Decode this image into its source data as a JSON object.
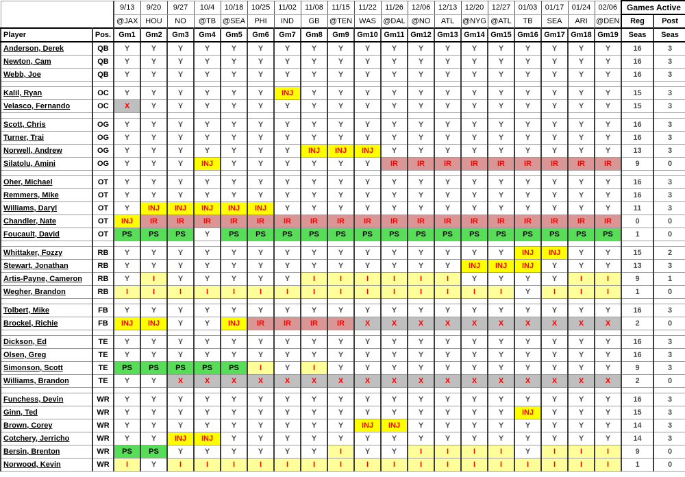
{
  "table": {
    "headers": {
      "player": "Player",
      "pos": "Pos.",
      "games_active": "Games Active",
      "reg_line1": "Reg",
      "reg_line2": "Seas",
      "post_line1": "Post",
      "post_line2": "Seas"
    },
    "games": [
      {
        "date": "9/13",
        "opponent": "@JAX",
        "label": "Gm1"
      },
      {
        "date": "9/20",
        "opponent": "HOU",
        "label": "Gm2"
      },
      {
        "date": "9/27",
        "opponent": "NO",
        "label": "Gm3"
      },
      {
        "date": "10/4",
        "opponent": "@TB",
        "label": "Gm4"
      },
      {
        "date": "10/18",
        "opponent": "@SEA",
        "label": "Gm5"
      },
      {
        "date": "10/25",
        "opponent": "PHI",
        "label": "Gm6"
      },
      {
        "date": "11/02",
        "opponent": "IND",
        "label": "Gm7"
      },
      {
        "date": "11/08",
        "opponent": "GB",
        "label": "Gm8"
      },
      {
        "date": "11/15",
        "opponent": "@TEN",
        "label": "Gm9"
      },
      {
        "date": "11/22",
        "opponent": "WAS",
        "label": "Gm10"
      },
      {
        "date": "11/26",
        "opponent": "@DAL",
        "label": "Gm11"
      },
      {
        "date": "12/06",
        "opponent": "@NO",
        "label": "Gm12"
      },
      {
        "date": "12/13",
        "opponent": "ATL",
        "label": "Gm13"
      },
      {
        "date": "12/20",
        "opponent": "@NYG",
        "label": "Gm14"
      },
      {
        "date": "12/27",
        "opponent": "@ATL",
        "label": "Gm15"
      },
      {
        "date": "01/03",
        "opponent": "TB",
        "label": "Gm16"
      },
      {
        "date": "01/17",
        "opponent": "SEA",
        "label": "Gm17"
      },
      {
        "date": "01/24",
        "opponent": "ARI",
        "label": "Gm18"
      },
      {
        "date": "02/06",
        "opponent": "@DEN",
        "label": "Gm19"
      }
    ],
    "status_colors": {
      "active_text": "#4d4d4d",
      "injured_bg": "#ffff00",
      "injured_reserve_bg": "#d99694",
      "practice_squad_bg": "#57dd57",
      "not_on_roster_bg": "#bfbfbf",
      "inactive_bg": "#ffff99",
      "status_text": "#ff0000"
    },
    "groups": [
      {
        "players": [
          {
            "name": "Anderson, Derek",
            "pos": "QB",
            "cells": [
              "Y",
              "Y",
              "Y",
              "Y",
              "Y",
              "Y",
              "Y",
              "Y",
              "Y",
              "Y",
              "Y",
              "Y",
              "Y",
              "Y",
              "Y",
              "Y",
              "Y",
              "Y",
              "Y"
            ],
            "reg": "16",
            "post": "3"
          },
          {
            "name": "Newton, Cam",
            "pos": "QB",
            "cells": [
              "Y",
              "Y",
              "Y",
              "Y",
              "Y",
              "Y",
              "Y",
              "Y",
              "Y",
              "Y",
              "Y",
              "Y",
              "Y",
              "Y",
              "Y",
              "Y",
              "Y",
              "Y",
              "Y"
            ],
            "reg": "16",
            "post": "3"
          },
          {
            "name": "Webb, Joe",
            "pos": "QB",
            "cells": [
              "Y",
              "Y",
              "Y",
              "Y",
              "Y",
              "Y",
              "Y",
              "Y",
              "Y",
              "Y",
              "Y",
              "Y",
              "Y",
              "Y",
              "Y",
              "Y",
              "Y",
              "Y",
              "Y"
            ],
            "reg": "16",
            "post": "3"
          }
        ]
      },
      {
        "players": [
          {
            "name": "Kalil, Ryan",
            "pos": "OC",
            "cells": [
              "Y",
              "Y",
              "Y",
              "Y",
              "Y",
              "Y",
              "INJ",
              "Y",
              "Y",
              "Y",
              "Y",
              "Y",
              "Y",
              "Y",
              "Y",
              "Y",
              "Y",
              "Y",
              "Y"
            ],
            "reg": "15",
            "post": "3"
          },
          {
            "name": "Velasco, Fernando",
            "pos": "OC",
            "cells": [
              "X",
              "Y",
              "Y",
              "Y",
              "Y",
              "Y",
              "Y",
              "Y",
              "Y",
              "Y",
              "Y",
              "Y",
              "Y",
              "Y",
              "Y",
              "Y",
              "Y",
              "Y",
              "Y"
            ],
            "reg": "15",
            "post": "3"
          }
        ]
      },
      {
        "players": [
          {
            "name": "Scott, Chris",
            "pos": "OG",
            "cells": [
              "Y",
              "Y",
              "Y",
              "Y",
              "Y",
              "Y",
              "Y",
              "Y",
              "Y",
              "Y",
              "Y",
              "Y",
              "Y",
              "Y",
              "Y",
              "Y",
              "Y",
              "Y",
              "Y"
            ],
            "reg": "16",
            "post": "3"
          },
          {
            "name": "Turner, Trai",
            "pos": "OG",
            "cells": [
              "Y",
              "Y",
              "Y",
              "Y",
              "Y",
              "Y",
              "Y",
              "Y",
              "Y",
              "Y",
              "Y",
              "Y",
              "Y",
              "Y",
              "Y",
              "Y",
              "Y",
              "Y",
              "Y"
            ],
            "reg": "16",
            "post": "3"
          },
          {
            "name": "Norwell, Andrew",
            "pos": "OG",
            "cells": [
              "Y",
              "Y",
              "Y",
              "Y",
              "Y",
              "Y",
              "Y",
              "INJ",
              "INJ",
              "INJ",
              "Y",
              "Y",
              "Y",
              "Y",
              "Y",
              "Y",
              "Y",
              "Y",
              "Y"
            ],
            "reg": "13",
            "post": "3"
          },
          {
            "name": "Silatolu, Amini",
            "pos": "OG",
            "cells": [
              "Y",
              "Y",
              "Y",
              "INJ",
              "Y",
              "Y",
              "Y",
              "Y",
              "Y",
              "Y",
              "IR",
              "IR",
              "IR",
              "IR",
              "IR",
              "IR",
              "IR",
              "IR",
              "IR"
            ],
            "reg": "9",
            "post": "0"
          }
        ]
      },
      {
        "players": [
          {
            "name": "Oher, Michael",
            "pos": "OT",
            "cells": [
              "Y",
              "Y",
              "Y",
              "Y",
              "Y",
              "Y",
              "Y",
              "Y",
              "Y",
              "Y",
              "Y",
              "Y",
              "Y",
              "Y",
              "Y",
              "Y",
              "Y",
              "Y",
              "Y"
            ],
            "reg": "16",
            "post": "3"
          },
          {
            "name": "Remmers, Mike",
            "pos": "OT",
            "cells": [
              "Y",
              "Y",
              "Y",
              "Y",
              "Y",
              "Y",
              "Y",
              "Y",
              "Y",
              "Y",
              "Y",
              "Y",
              "Y",
              "Y",
              "Y",
              "Y",
              "Y",
              "Y",
              "Y"
            ],
            "reg": "16",
            "post": "3"
          },
          {
            "name": "Williams, Daryl",
            "pos": "OT",
            "cells": [
              "Y",
              "INJ",
              "INJ",
              "INJ",
              "INJ",
              "INJ",
              "Y",
              "Y",
              "Y",
              "Y",
              "Y",
              "Y",
              "Y",
              "Y",
              "Y",
              "Y",
              "Y",
              "Y",
              "Y"
            ],
            "reg": "11",
            "post": "3"
          },
          {
            "name": "Chandler, Nate",
            "pos": "OT",
            "cells": [
              "INJ",
              "IR",
              "IR",
              "IR",
              "IR",
              "IR",
              "IR",
              "IR",
              "IR",
              "IR",
              "IR",
              "IR",
              "IR",
              "IR",
              "IR",
              "IR",
              "IR",
              "IR",
              "IR"
            ],
            "reg": "0",
            "post": "0"
          },
          {
            "name": "Foucault, David",
            "pos": "OT",
            "cells": [
              "PS",
              "PS",
              "PS",
              "Y",
              "PS",
              "PS",
              "PS",
              "PS",
              "PS",
              "PS",
              "PS",
              "PS",
              "PS",
              "PS",
              "PS",
              "PS",
              "PS",
              "PS",
              "PS"
            ],
            "reg": "1",
            "post": "0"
          }
        ]
      },
      {
        "players": [
          {
            "name": "Whittaker, Fozzy",
            "pos": "RB",
            "cells": [
              "Y",
              "Y",
              "Y",
              "Y",
              "Y",
              "Y",
              "Y",
              "Y",
              "Y",
              "Y",
              "Y",
              "Y",
              "Y",
              "Y",
              "Y",
              "INJ",
              "INJ",
              "Y",
              "Y"
            ],
            "reg": "15",
            "post": "2"
          },
          {
            "name": "Stewart, Jonathan",
            "pos": "RB",
            "cells": [
              "Y",
              "Y",
              "Y",
              "Y",
              "Y",
              "Y",
              "Y",
              "Y",
              "Y",
              "Y",
              "Y",
              "Y",
              "Y",
              "INJ",
              "INJ",
              "INJ",
              "Y",
              "Y",
              "Y"
            ],
            "reg": "13",
            "post": "3"
          },
          {
            "name": "Artis-Payne, Cameron",
            "pos": "RB",
            "cells": [
              "Y",
              "I",
              "Y",
              "Y",
              "Y",
              "Y",
              "Y",
              "I",
              "I",
              "I",
              "I",
              "I",
              "I",
              "Y",
              "Y",
              "Y",
              "Y",
              "I",
              "I"
            ],
            "reg": "9",
            "post": "1"
          },
          {
            "name": "Wegher, Brandon",
            "pos": "RB",
            "cells": [
              "I",
              "I",
              "I",
              "I",
              "I",
              "I",
              "I",
              "I",
              "I",
              "I",
              "I",
              "I",
              "I",
              "I",
              "I",
              "Y",
              "I",
              "I",
              "I"
            ],
            "reg": "1",
            "post": "0"
          }
        ]
      },
      {
        "players": [
          {
            "name": "Tolbert, Mike",
            "pos": "FB",
            "cells": [
              "Y",
              "Y",
              "Y",
              "Y",
              "Y",
              "Y",
              "Y",
              "Y",
              "Y",
              "Y",
              "Y",
              "Y",
              "Y",
              "Y",
              "Y",
              "Y",
              "Y",
              "Y",
              "Y"
            ],
            "reg": "16",
            "post": "3"
          },
          {
            "name": "Brockel, Richie",
            "pos": "FB",
            "cells": [
              "INJ",
              "INJ",
              "Y",
              "Y",
              "INJ",
              "IR",
              "IR",
              "IR",
              "IR",
              "X",
              "X",
              "X",
              "X",
              "X",
              "X",
              "X",
              "X",
              "X",
              "X"
            ],
            "reg": "2",
            "post": "0"
          }
        ]
      },
      {
        "players": [
          {
            "name": "Dickson, Ed",
            "pos": "TE",
            "cells": [
              "Y",
              "Y",
              "Y",
              "Y",
              "Y",
              "Y",
              "Y",
              "Y",
              "Y",
              "Y",
              "Y",
              "Y",
              "Y",
              "Y",
              "Y",
              "Y",
              "Y",
              "Y",
              "Y"
            ],
            "reg": "16",
            "post": "3"
          },
          {
            "name": "Olsen, Greg",
            "pos": "TE",
            "cells": [
              "Y",
              "Y",
              "Y",
              "Y",
              "Y",
              "Y",
              "Y",
              "Y",
              "Y",
              "Y",
              "Y",
              "Y",
              "Y",
              "Y",
              "Y",
              "Y",
              "Y",
              "Y",
              "Y"
            ],
            "reg": "16",
            "post": "3"
          },
          {
            "name": "Simonson, Scott",
            "pos": "TE",
            "cells": [
              "PS",
              "PS",
              "PS",
              "PS",
              "PS",
              "I",
              "Y",
              "I",
              "Y",
              "Y",
              "Y",
              "Y",
              "Y",
              "Y",
              "Y",
              "Y",
              "Y",
              "Y",
              "Y"
            ],
            "reg": "9",
            "post": "3"
          },
          {
            "name": "Williams, Brandon",
            "pos": "TE",
            "cells": [
              "Y",
              "Y",
              "X",
              "X",
              "X",
              "X",
              "X",
              "X",
              "X",
              "X",
              "X",
              "X",
              "X",
              "X",
              "X",
              "X",
              "X",
              "X",
              "X"
            ],
            "reg": "2",
            "post": "0"
          }
        ]
      },
      {
        "players": [
          {
            "name": "Funchess, Devin",
            "pos": "WR",
            "cells": [
              "Y",
              "Y",
              "Y",
              "Y",
              "Y",
              "Y",
              "Y",
              "Y",
              "Y",
              "Y",
              "Y",
              "Y",
              "Y",
              "Y",
              "Y",
              "Y",
              "Y",
              "Y",
              "Y"
            ],
            "reg": "16",
            "post": "3"
          },
          {
            "name": "Ginn, Ted",
            "pos": "WR",
            "cells": [
              "Y",
              "Y",
              "Y",
              "Y",
              "Y",
              "Y",
              "Y",
              "Y",
              "Y",
              "Y",
              "Y",
              "Y",
              "Y",
              "Y",
              "Y",
              "INJ",
              "Y",
              "Y",
              "Y"
            ],
            "reg": "15",
            "post": "3"
          },
          {
            "name": "Brown, Corey",
            "pos": "WR",
            "cells": [
              "Y",
              "Y",
              "Y",
              "Y",
              "Y",
              "Y",
              "Y",
              "Y",
              "Y",
              "INJ",
              "INJ",
              "Y",
              "Y",
              "Y",
              "Y",
              "Y",
              "Y",
              "Y",
              "Y"
            ],
            "reg": "14",
            "post": "3"
          },
          {
            "name": "Cotchery, Jerricho",
            "pos": "WR",
            "cells": [
              "Y",
              "Y",
              "INJ",
              "INJ",
              "Y",
              "Y",
              "Y",
              "Y",
              "Y",
              "Y",
              "Y",
              "Y",
              "Y",
              "Y",
              "Y",
              "Y",
              "Y",
              "Y",
              "Y"
            ],
            "reg": "14",
            "post": "3"
          },
          {
            "name": "Bersin, Brenton",
            "pos": "WR",
            "cells": [
              "PS",
              "PS",
              "Y",
              "Y",
              "Y",
              "Y",
              "Y",
              "Y",
              "I",
              "Y",
              "Y",
              "I",
              "I",
              "I",
              "I",
              "Y",
              "I",
              "I",
              "I"
            ],
            "reg": "9",
            "post": "0"
          },
          {
            "name": "Norwood, Kevin",
            "pos": "WR",
            "cells": [
              "I",
              "Y",
              "I",
              "I",
              "I",
              "I",
              "I",
              "I",
              "I",
              "I",
              "I",
              "I",
              "I",
              "I",
              "I",
              "I",
              "I",
              "I",
              "I"
            ],
            "reg": "1",
            "post": "0"
          }
        ]
      }
    ]
  }
}
